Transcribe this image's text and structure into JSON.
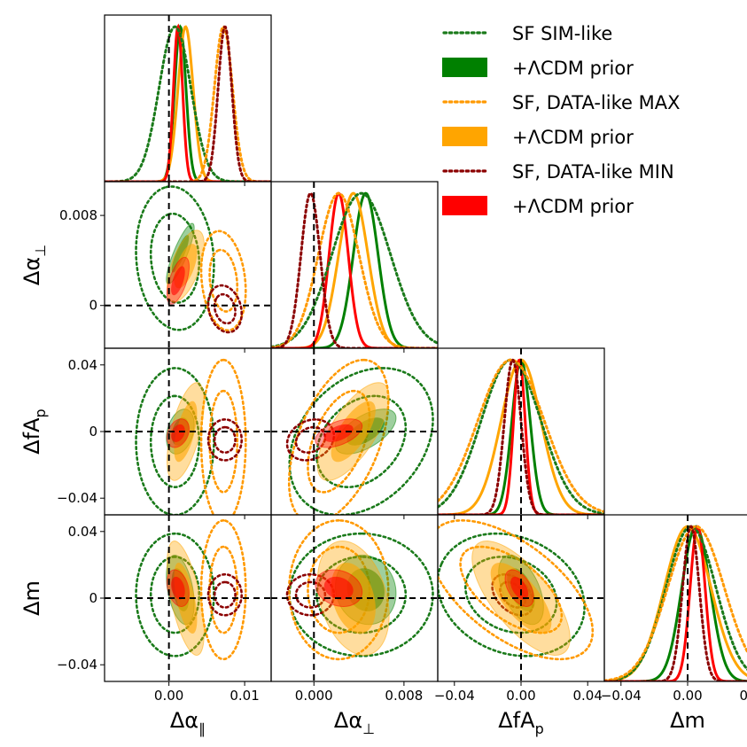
{
  "chart_data": {
    "type": "triangle-corner",
    "parameters": [
      {
        "name": "delta_alpha_parallel",
        "label": "Δα",
        "sub": "∥",
        "range": [
          -0.0085,
          0.0135
        ],
        "ticks": [
          {
            "v": 0.0,
            "label": "0.00"
          },
          {
            "v": 0.01,
            "label": "0.01"
          }
        ],
        "truth": 0
      },
      {
        "name": "delta_alpha_perp",
        "label": "Δα",
        "sub": "⊥",
        "range": [
          -0.0038,
          0.011
        ],
        "ticks": [
          {
            "v": 0.0,
            "label": "0.000"
          },
          {
            "v": 0.008,
            "label": "0.008"
          }
        ],
        "ytick_labels": [
          {
            "v": 0.0,
            "label": "0"
          },
          {
            "v": 0.008,
            "label": "0.008"
          }
        ],
        "truth": 0
      },
      {
        "name": "delta_fAp",
        "label": "ΔfA",
        "sub": "p",
        "range": [
          -0.05,
          0.05
        ],
        "ticks": [
          {
            "v": -0.04,
            "label": "−0.04"
          },
          {
            "v": 0.0,
            "label": "0.00"
          },
          {
            "v": 0.04,
            "label": "0.04"
          }
        ],
        "ytick_labels": [
          {
            "v": -0.04,
            "label": "−0.04"
          },
          {
            "v": 0.0,
            "label": "0"
          },
          {
            "v": 0.04,
            "label": "0.04"
          }
        ],
        "truth": 0
      },
      {
        "name": "delta_m",
        "label": "Δm",
        "sub": "",
        "range": [
          -0.05,
          0.05
        ],
        "ticks": [
          {
            "v": -0.04,
            "label": "−0.04"
          },
          {
            "v": 0.0,
            "label": "0.00"
          },
          {
            "v": 0.04,
            "label": "0.04"
          }
        ],
        "ytick_labels": [
          {
            "v": -0.04,
            "label": "−0.04"
          },
          {
            "v": 0.0,
            "label": "0"
          },
          {
            "v": 0.04,
            "label": "0.04"
          }
        ],
        "truth": 0
      }
    ],
    "series": [
      {
        "name": "SF SIM-like",
        "style": "dotted",
        "color": "#1a7a1a",
        "mean": [
          0.0008,
          0.0042,
          -0.006,
          0.002
        ],
        "sigma": [
          0.0021,
          0.0026,
          0.018,
          0.015
        ],
        "corr": [
          [
            0,
            1,
            -0.1
          ],
          [
            0,
            2,
            0.0
          ],
          [
            0,
            3,
            0.0
          ],
          [
            1,
            2,
            0.3
          ],
          [
            1,
            3,
            0.0
          ],
          [
            2,
            3,
            -0.2
          ]
        ]
      },
      {
        "name": "+ΛCDM prior",
        "style": "filled",
        "color": "#008000",
        "mean": [
          0.0015,
          0.0046,
          0.0,
          0.005
        ],
        "sigma": [
          0.00075,
          0.0011,
          0.0055,
          0.0085
        ],
        "corr": [
          [
            0,
            1,
            0.85
          ],
          [
            0,
            2,
            0.3
          ],
          [
            0,
            3,
            -0.4
          ],
          [
            1,
            2,
            0.6
          ],
          [
            1,
            3,
            -0.1
          ],
          [
            2,
            3,
            -0.5
          ]
        ]
      },
      {
        "name": "SF, DATA-like MAX",
        "style": "dotted",
        "color": "#ff9900",
        "mean": [
          0.0072,
          0.0022,
          -0.006,
          0.005
        ],
        "sigma": [
          0.0012,
          0.0018,
          0.02,
          0.017
        ],
        "corr": [
          [
            0,
            1,
            -0.2
          ],
          [
            0,
            2,
            0.0
          ],
          [
            0,
            3,
            0.0
          ],
          [
            1,
            2,
            0.5
          ],
          [
            1,
            3,
            0.0
          ],
          [
            2,
            3,
            -0.6
          ]
        ]
      },
      {
        "name": "+ΛCDM prior",
        "style": "filled",
        "color": "#ffa500",
        "mean": [
          0.0022,
          0.0035,
          0.0,
          0.0
        ],
        "sigma": [
          0.001,
          0.0013,
          0.012,
          0.014
        ],
        "corr": [
          [
            0,
            1,
            0.6
          ],
          [
            0,
            2,
            0.6
          ],
          [
            0,
            3,
            -0.6
          ],
          [
            1,
            2,
            0.7
          ],
          [
            1,
            3,
            -0.3
          ],
          [
            2,
            3,
            -0.7
          ]
        ]
      },
      {
        "name": "SF, DATA-like MIN",
        "style": "dotted",
        "color": "#8b0000",
        "mean": [
          0.0074,
          -0.0003,
          -0.005,
          0.002
        ],
        "sigma": [
          0.0009,
          0.00085,
          0.005,
          0.005
        ],
        "corr": [
          [
            0,
            1,
            -0.2
          ],
          [
            0,
            2,
            0.0
          ],
          [
            0,
            3,
            0.0
          ],
          [
            1,
            2,
            0.2
          ],
          [
            1,
            3,
            0.0
          ],
          [
            2,
            3,
            -0.4
          ]
        ]
      },
      {
        "name": "+ΛCDM prior",
        "style": "filled",
        "color": "#ff0000",
        "mean": [
          0.0012,
          0.0022,
          -0.001,
          0.006
        ],
        "sigma": [
          0.0006,
          0.00085,
          0.0035,
          0.0045
        ],
        "corr": [
          [
            0,
            1,
            0.6
          ],
          [
            0,
            2,
            0.3
          ],
          [
            0,
            3,
            -0.3
          ],
          [
            1,
            2,
            0.5
          ],
          [
            1,
            3,
            -0.2
          ],
          [
            2,
            3,
            -0.5
          ]
        ]
      }
    ],
    "legend_position": "top-right",
    "truth_lines": "dashed black at 0"
  }
}
